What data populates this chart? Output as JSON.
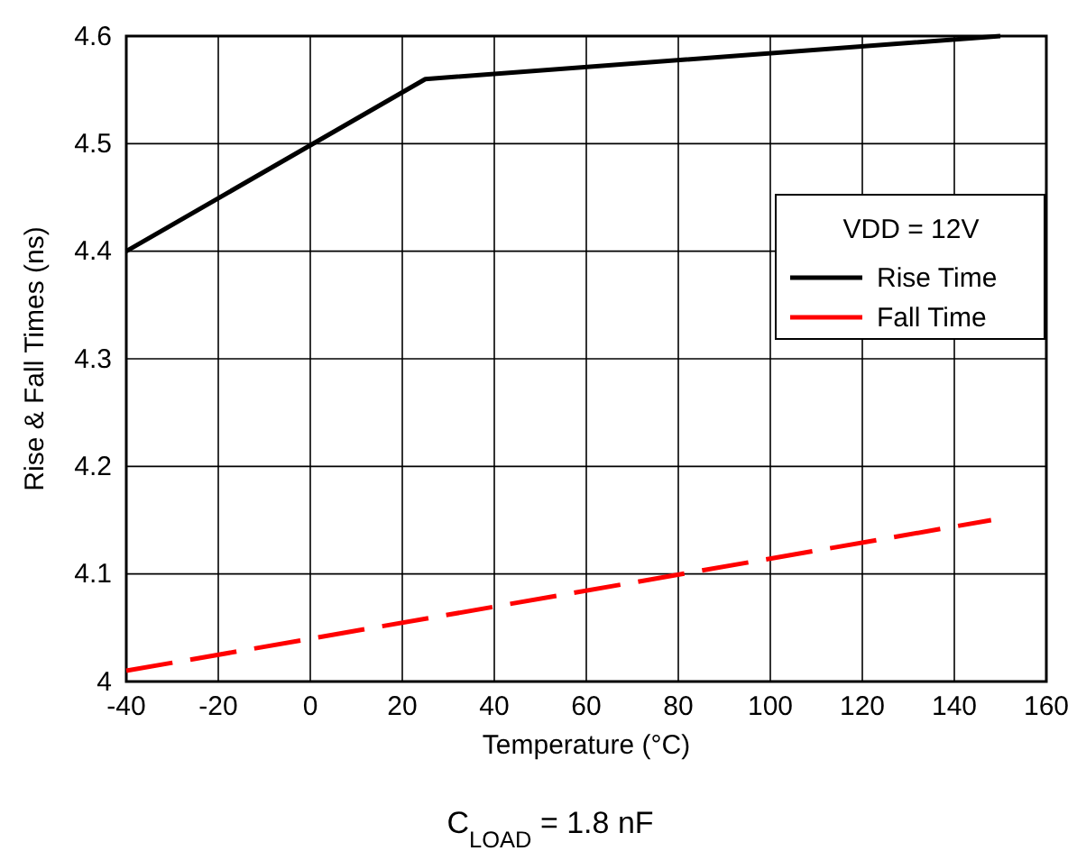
{
  "chart_data": {
    "type": "line",
    "xlabel": "Temperature (°C)",
    "ylabel": "Rise & Fall Times (ns)",
    "legend_title": "VDD = 12V",
    "annotations": [
      "C$_{LOAD}$ = 1.8 nF"
    ],
    "xlim": [
      -40,
      160
    ],
    "xticks": [
      -40,
      -20,
      0,
      20,
      40,
      60,
      80,
      100,
      120,
      140,
      160
    ],
    "ylim": [
      4,
      4.6
    ],
    "yticks": [
      4,
      4.1,
      4.2,
      4.3,
      4.4,
      4.5,
      4.6
    ],
    "grid": true,
    "legend": "top right",
    "series": [
      {
        "name": "Rise Time",
        "color": "#000000",
        "line_style": "solid",
        "x": [
          -40,
          25,
          150
        ],
        "values": [
          4.4,
          4.56,
          4.6
        ]
      },
      {
        "name": "Fall Time",
        "color": "#ff0000",
        "line_style": "dashed",
        "x": [
          -40,
          148
        ],
        "values": [
          4.01,
          4.15
        ]
      }
    ]
  }
}
